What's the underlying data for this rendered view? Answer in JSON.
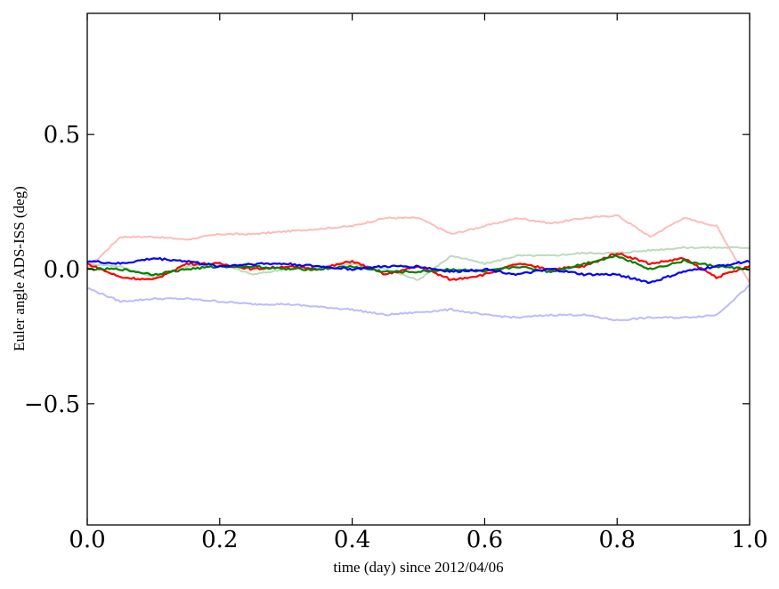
{
  "chart_data": {
    "type": "line",
    "xlabel": "time (day) since 2012/04/06",
    "ylabel": "Euler angle ADS-ISS (deg)",
    "xlim": [
      0.0,
      1.0
    ],
    "ylim": [
      -0.95,
      0.95
    ],
    "xticks": [
      0.0,
      0.2,
      0.4,
      0.6,
      0.8,
      1.0
    ],
    "xtick_labels": [
      "0.0",
      "0.2",
      "0.4",
      "0.6",
      "0.8",
      "1.0"
    ],
    "yticks": [
      -0.5,
      0.0,
      0.5
    ],
    "ytick_labels": [
      "−0.5",
      "0.0",
      "0.5"
    ],
    "grid": false,
    "legend": "none",
    "x": [
      0.0,
      0.05,
      0.1,
      0.15,
      0.2,
      0.25,
      0.3,
      0.35,
      0.4,
      0.45,
      0.5,
      0.55,
      0.6,
      0.65,
      0.7,
      0.75,
      0.8,
      0.85,
      0.9,
      0.95,
      1.0
    ],
    "series": [
      {
        "color": "#ffbbbb",
        "opacity": 1,
        "values": [
          0.0,
          0.12,
          0.12,
          0.11,
          0.13,
          0.13,
          0.14,
          0.15,
          0.16,
          0.19,
          0.19,
          0.13,
          0.16,
          0.19,
          0.17,
          0.19,
          0.2,
          0.12,
          0.19,
          0.16,
          -0.05
        ]
      },
      {
        "color": "#bbdbbb",
        "opacity": 1,
        "values": [
          0.02,
          0.01,
          -0.03,
          0.01,
          0.02,
          -0.02,
          0.0,
          0.01,
          0.02,
          0.0,
          -0.04,
          0.05,
          0.02,
          0.05,
          0.05,
          0.06,
          0.06,
          0.07,
          0.08,
          0.08,
          0.08
        ]
      },
      {
        "color": "#bbbbff",
        "opacity": 1,
        "values": [
          -0.07,
          -0.12,
          -0.11,
          -0.11,
          -0.12,
          -0.13,
          -0.13,
          -0.14,
          -0.15,
          -0.17,
          -0.16,
          -0.15,
          -0.17,
          -0.18,
          -0.17,
          -0.17,
          -0.19,
          -0.18,
          -0.18,
          -0.17,
          -0.06
        ]
      },
      {
        "color": "#ff0000",
        "opacity": 1,
        "values": [
          0.02,
          -0.03,
          -0.04,
          0.02,
          0.02,
          0.0,
          0.01,
          0.0,
          0.03,
          -0.02,
          0.01,
          -0.04,
          -0.02,
          0.02,
          0.0,
          0.01,
          0.06,
          0.02,
          0.04,
          -0.03,
          0.01
        ]
      },
      {
        "color": "#008000",
        "opacity": 1,
        "values": [
          0.0,
          0.0,
          -0.02,
          0.0,
          0.01,
          0.01,
          0.0,
          0.0,
          0.01,
          -0.01,
          -0.01,
          0.0,
          -0.01,
          0.01,
          -0.01,
          0.02,
          0.05,
          0.0,
          0.03,
          0.01,
          0.0
        ]
      },
      {
        "color": "#0000ff",
        "opacity": 1,
        "values": [
          0.03,
          0.02,
          0.04,
          0.03,
          0.01,
          0.02,
          0.02,
          0.01,
          0.0,
          0.01,
          0.01,
          -0.01,
          0.0,
          -0.02,
          0.0,
          -0.02,
          -0.02,
          -0.05,
          -0.01,
          0.01,
          0.03
        ]
      }
    ]
  }
}
